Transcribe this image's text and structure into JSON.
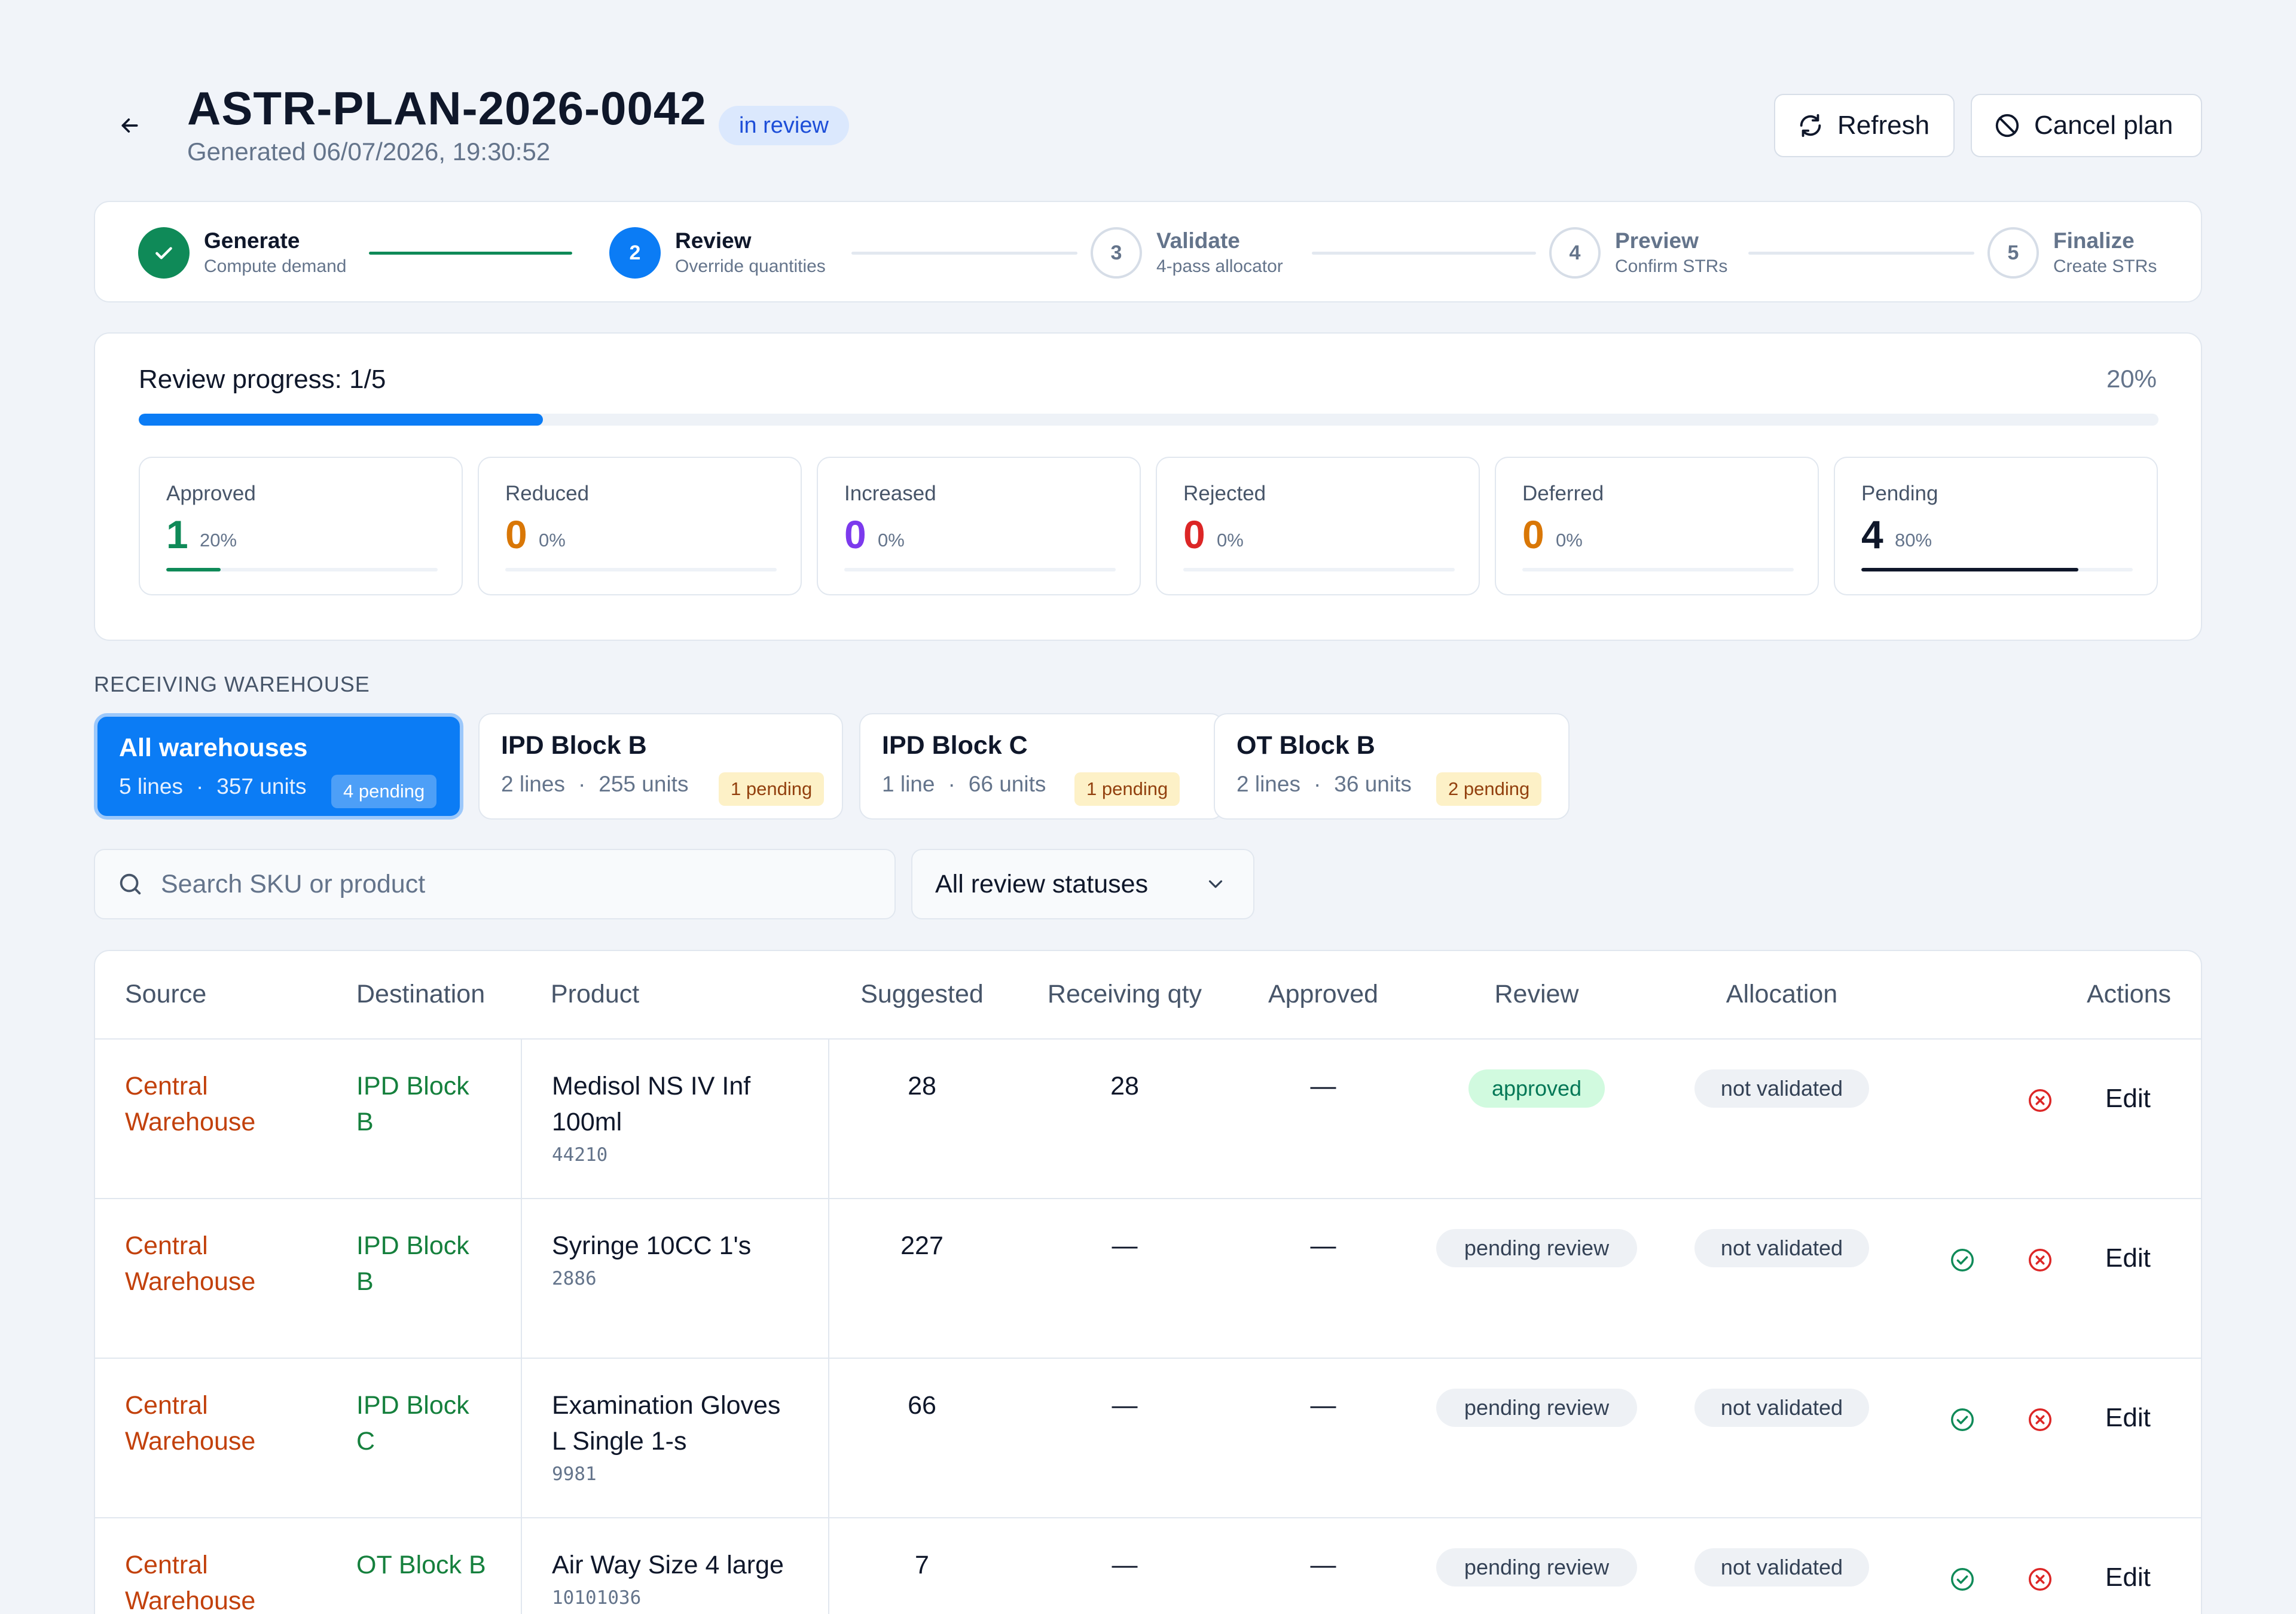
{
  "header": {
    "title": "ASTR-PLAN-2026-0042",
    "status": "in review",
    "subtitle": "Generated 06/07/2026, 19:30:52",
    "refresh_label": "Refresh",
    "cancel_label": "Cancel plan"
  },
  "stepper": {
    "steps": [
      {
        "number": "1",
        "label": "Generate",
        "desc": "Compute demand",
        "state": "done"
      },
      {
        "number": "2",
        "label": "Review",
        "desc": "Override quantities",
        "state": "active"
      },
      {
        "number": "3",
        "label": "Validate",
        "desc": "4-pass allocator",
        "state": "todo"
      },
      {
        "number": "4",
        "label": "Preview",
        "desc": "Confirm STRs",
        "state": "todo"
      },
      {
        "number": "5",
        "label": "Finalize",
        "desc": "Create STRs",
        "state": "todo"
      }
    ]
  },
  "progress": {
    "label": "Review progress: 1/5",
    "percent_label": "20%",
    "fraction": 0.2,
    "stats": [
      {
        "label": "Approved",
        "value": "1",
        "pct": "20%",
        "fraction": 0.2,
        "color": "#0f8a58"
      },
      {
        "label": "Reduced",
        "value": "0",
        "pct": "0%",
        "fraction": 0,
        "color": "#d97706"
      },
      {
        "label": "Increased",
        "value": "0",
        "pct": "0%",
        "fraction": 0,
        "color": "#7c3aed"
      },
      {
        "label": "Rejected",
        "value": "0",
        "pct": "0%",
        "fraction": 0,
        "color": "#dc2626"
      },
      {
        "label": "Deferred",
        "value": "0",
        "pct": "0%",
        "fraction": 0,
        "color": "#d97706"
      },
      {
        "label": "Pending",
        "value": "4",
        "pct": "80%",
        "fraction": 0.8,
        "color": "#0f172a"
      }
    ]
  },
  "warehouses": {
    "section_label": "RECEIVING WAREHOUSE",
    "separator": "·",
    "items": [
      {
        "name": "All warehouses",
        "lines": "5 lines",
        "units": "357 units",
        "pending": "4 pending",
        "active": true
      },
      {
        "name": "IPD Block B",
        "lines": "2 lines",
        "units": "255 units",
        "pending": "1 pending",
        "active": false
      },
      {
        "name": "IPD Block C",
        "lines": "1 line",
        "units": "66 units",
        "pending": "1 pending",
        "active": false
      },
      {
        "name": "OT Block B",
        "lines": "2 lines",
        "units": "36 units",
        "pending": "2 pending",
        "active": false
      }
    ]
  },
  "filters": {
    "search_placeholder": "Search SKU or product",
    "status_select": "All review statuses"
  },
  "table": {
    "columns": [
      "Source",
      "Destination",
      "Product",
      "Suggested",
      "Receiving qty",
      "Approved",
      "Review",
      "Allocation",
      "Actions"
    ],
    "edit_label": "Edit",
    "rows": [
      {
        "source": [
          "Central",
          "Warehouse"
        ],
        "dest": [
          "IPD Block",
          "B"
        ],
        "product": [
          "Medisol NS IV Inf",
          "100ml"
        ],
        "code": "44210",
        "suggested": "28",
        "receiving": "28",
        "approved": "—",
        "review": "approved",
        "allocation": "not validated",
        "can_approve": false
      },
      {
        "source": [
          "Central",
          "Warehouse"
        ],
        "dest": [
          "IPD Block",
          "B"
        ],
        "product": [
          "Syringe 10CC 1's"
        ],
        "code": "2886",
        "suggested": "227",
        "receiving": "—",
        "approved": "—",
        "review": "pending review",
        "allocation": "not validated",
        "can_approve": true
      },
      {
        "source": [
          "Central",
          "Warehouse"
        ],
        "dest": [
          "IPD Block",
          "C"
        ],
        "product": [
          "Examination Gloves",
          "L Single 1-s"
        ],
        "code": "9981",
        "suggested": "66",
        "receiving": "—",
        "approved": "—",
        "review": "pending review",
        "allocation": "not validated",
        "can_approve": true
      },
      {
        "source": [
          "Central",
          "Warehouse"
        ],
        "dest": [
          "OT Block B"
        ],
        "product": [
          "Air Way Size 4 large"
        ],
        "code": "10101036",
        "suggested": "7",
        "receiving": "—",
        "approved": "—",
        "review": "pending review",
        "allocation": "not validated",
        "can_approve": true
      }
    ]
  },
  "icons": {
    "back": "arrow-left-icon",
    "refresh": "refresh-icon",
    "cancel": "ban-icon",
    "search": "search-icon",
    "chevron": "chevron-down-icon",
    "approve": "check-circle-icon",
    "reject": "x-circle-icon",
    "check": "check-icon"
  }
}
